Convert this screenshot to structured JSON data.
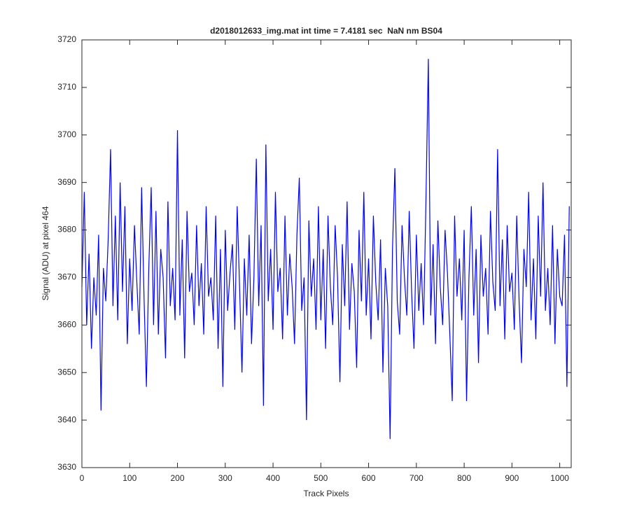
{
  "chart_data": {
    "type": "line",
    "title": "d2018012633_img.mat int time = 7.4181 sec  NaN nm BS04",
    "x_label": "Track Pixels",
    "y_label": "Signal (ADU) at pixel 464",
    "color": "#0000ff",
    "xlim": [
      0,
      1024
    ],
    "ylim": [
      3630,
      3720
    ],
    "xticks": [
      0,
      100,
      200,
      300,
      400,
      500,
      600,
      700,
      800,
      900,
      1000
    ],
    "yticks": [
      3630,
      3640,
      3650,
      3660,
      3670,
      3680,
      3690,
      3700,
      3710,
      3720
    ],
    "grid": false,
    "x": [
      0,
      5,
      10,
      15,
      20,
      25,
      30,
      35,
      40,
      45,
      50,
      55,
      60,
      65,
      70,
      75,
      80,
      85,
      90,
      95,
      100,
      105,
      110,
      115,
      120,
      125,
      130,
      135,
      140,
      145,
      150,
      155,
      160,
      165,
      170,
      175,
      180,
      185,
      190,
      195,
      200,
      205,
      210,
      215,
      220,
      225,
      230,
      235,
      240,
      245,
      250,
      255,
      260,
      265,
      270,
      275,
      280,
      285,
      290,
      295,
      300,
      305,
      310,
      315,
      320,
      325,
      330,
      335,
      340,
      345,
      350,
      355,
      360,
      365,
      370,
      375,
      380,
      385,
      390,
      395,
      400,
      405,
      410,
      415,
      420,
      425,
      430,
      435,
      440,
      445,
      450,
      455,
      460,
      465,
      470,
      475,
      480,
      485,
      490,
      495,
      500,
      505,
      510,
      515,
      520,
      525,
      530,
      535,
      540,
      545,
      550,
      555,
      560,
      565,
      570,
      575,
      580,
      585,
      590,
      595,
      600,
      605,
      610,
      615,
      620,
      625,
      630,
      635,
      640,
      645,
      650,
      655,
      660,
      665,
      670,
      675,
      680,
      685,
      690,
      695,
      700,
      705,
      710,
      715,
      720,
      725,
      730,
      735,
      740,
      745,
      750,
      755,
      760,
      765,
      770,
      775,
      780,
      785,
      790,
      795,
      800,
      805,
      810,
      815,
      820,
      825,
      830,
      835,
      840,
      845,
      850,
      855,
      860,
      865,
      870,
      875,
      880,
      885,
      890,
      895,
      900,
      905,
      910,
      915,
      920,
      925,
      930,
      935,
      940,
      945,
      950,
      955,
      960,
      965,
      970,
      975,
      980,
      985,
      990,
      995,
      1000,
      1005,
      1010,
      1015,
      1020
    ],
    "values": [
      3668,
      3688,
      3660,
      3675,
      3655,
      3670,
      3662,
      3679,
      3642,
      3672,
      3665,
      3678,
      3697,
      3664,
      3683,
      3661,
      3690,
      3667,
      3685,
      3656,
      3674,
      3663,
      3681,
      3669,
      3658,
      3689,
      3666,
      3647,
      3672,
      3689,
      3660,
      3684,
      3658,
      3676,
      3670,
      3653,
      3686,
      3664,
      3672,
      3661,
      3701,
      3662,
      3678,
      3653,
      3684,
      3667,
      3671,
      3660,
      3681,
      3664,
      3673,
      3658,
      3685,
      3666,
      3670,
      3661,
      3683,
      3655,
      3676,
      3647,
      3680,
      3663,
      3671,
      3677,
      3659,
      3685,
      3668,
      3650,
      3674,
      3662,
      3679,
      3656,
      3670,
      3695,
      3664,
      3681,
      3643,
      3698,
      3665,
      3676,
      3659,
      3688,
      3667,
      3672,
      3657,
      3683,
      3662,
      3675,
      3668,
      3656,
      3679,
      3691,
      3663,
      3670,
      3640,
      3682,
      3666,
      3674,
      3659,
      3685,
      3661,
      3676,
      3655,
      3683,
      3668,
      3660,
      3681,
      3670,
      3648,
      3677,
      3664,
      3686,
      3659,
      3673,
      3667,
      3651,
      3680,
      3665,
      3688,
      3662,
      3674,
      3657,
      3683,
      3669,
      3661,
      3678,
      3650,
      3672,
      3664,
      3636,
      3676,
      3693,
      3665,
      3658,
      3681,
      3670,
      3662,
      3684,
      3667,
      3655,
      3679,
      3663,
      3673,
      3660,
      3686,
      3716,
      3662,
      3677,
      3656,
      3682,
      3668,
      3660,
      3680,
      3671,
      3658,
      3644,
      3683,
      3666,
      3674,
      3661,
      3680,
      3644,
      3670,
      3685,
      3662,
      3676,
      3652,
      3679,
      3666,
      3672,
      3658,
      3684,
      3669,
      3663,
      3697,
      3664,
      3678,
      3657,
      3681,
      3667,
      3671,
      3659,
      3683,
      3665,
      3652,
      3676,
      3668,
      3688,
      3661,
      3674,
      3657,
      3683,
      3666,
      3690,
      3663,
      3672,
      3660,
      3681,
      3656,
      3676,
      3666,
      3664,
      3679,
      3647,
      3685
    ]
  }
}
